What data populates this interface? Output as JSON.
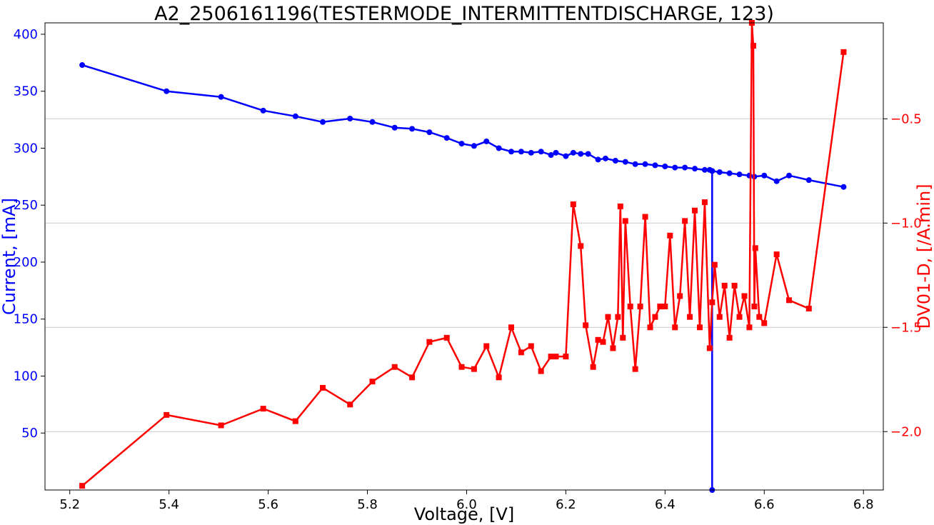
{
  "chart_data": {
    "type": "line",
    "title": "A2_2506161196(TESTERMODE_INTERMITTENTDISCHARGE, 123)",
    "xlabel": "Voltage, [V]",
    "ylabel_left": "Current, [mA]",
    "ylabel_right": "DV01-D, [/A.min]",
    "xlim": [
      5.15,
      6.84
    ],
    "ylim_left": [
      0,
      410
    ],
    "ylim_right": [
      -2.28,
      -0.04
    ],
    "xticks": [
      5.2,
      5.4,
      5.6,
      5.8,
      6.0,
      6.2,
      6.4,
      6.6,
      6.8
    ],
    "xtick_labels": [
      "5.2",
      "5.4",
      "5.6",
      "5.8",
      "6.0",
      "6.2",
      "6.4",
      "6.6",
      "6.8"
    ],
    "yticks_left": [
      50,
      100,
      150,
      200,
      250,
      300,
      350,
      400
    ],
    "ytick_labels_left": [
      "50",
      "100",
      "150",
      "200",
      "250",
      "300",
      "350",
      "400"
    ],
    "yticks_right": [
      -2.0,
      -1.5,
      -1.0,
      -0.5
    ],
    "ytick_labels_right": [
      "−2.0",
      "−1.5",
      "−1.0",
      "−0.5"
    ],
    "grid": "horizontal lines at right-axis ticks",
    "colors": {
      "current": "#0000ff",
      "dv": "#ff0000",
      "grid": "#cccccc"
    },
    "series": [
      {
        "axis": "left",
        "marker": "circle",
        "x": [
          5.225,
          5.395,
          5.505,
          5.59,
          5.655,
          5.71,
          5.765,
          5.81,
          5.855,
          5.89,
          5.925,
          5.96,
          5.99,
          6.015,
          6.04,
          6.065,
          6.09,
          6.11,
          6.13,
          6.15,
          6.17,
          6.18,
          6.2,
          6.215,
          6.23,
          6.245,
          6.265,
          6.28,
          6.3,
          6.32,
          6.34,
          6.36,
          6.38,
          6.4,
          6.42,
          6.44,
          6.46,
          6.48,
          6.49,
          6.495,
          6.495,
          6.495,
          6.51,
          6.53,
          6.55,
          6.57,
          6.58,
          6.6,
          6.625,
          6.65,
          6.69,
          6.76
        ],
        "values": [
          373,
          350,
          345,
          333,
          328,
          323,
          326,
          323,
          318,
          317,
          314,
          309,
          304,
          302,
          306,
          300,
          297,
          297,
          296,
          297,
          294,
          296,
          293,
          296,
          295,
          295,
          290,
          291,
          289,
          288,
          286,
          286,
          285,
          284,
          283,
          283,
          282,
          281,
          281,
          280,
          0,
          280,
          279,
          278,
          277,
          276,
          275,
          276,
          271,
          276,
          272,
          266
        ]
      },
      {
        "axis": "right",
        "marker": "square",
        "x": [
          5.225,
          5.395,
          5.505,
          5.59,
          5.655,
          5.71,
          5.765,
          5.81,
          5.855,
          5.89,
          5.925,
          5.96,
          5.99,
          6.015,
          6.04,
          6.065,
          6.09,
          6.11,
          6.13,
          6.15,
          6.17,
          6.18,
          6.2,
          6.215,
          6.23,
          6.24,
          6.255,
          6.265,
          6.275,
          6.285,
          6.295,
          6.305,
          6.31,
          6.315,
          6.32,
          6.33,
          6.34,
          6.35,
          6.36,
          6.37,
          6.38,
          6.39,
          6.4,
          6.41,
          6.42,
          6.43,
          6.44,
          6.45,
          6.46,
          6.47,
          6.48,
          6.49,
          6.495,
          6.5,
          6.51,
          6.52,
          6.53,
          6.54,
          6.55,
          6.56,
          6.57,
          6.575,
          6.578,
          6.58,
          6.582,
          6.59,
          6.6,
          6.625,
          6.65,
          6.69,
          6.76
        ],
        "values": [
          -2.26,
          -1.92,
          -1.97,
          -1.89,
          -1.95,
          -1.79,
          -1.87,
          -1.76,
          -1.69,
          -1.74,
          -1.57,
          -1.55,
          -1.69,
          -1.7,
          -1.59,
          -1.74,
          -1.5,
          -1.62,
          -1.59,
          -1.71,
          -1.64,
          -1.64,
          -1.64,
          -0.91,
          -1.11,
          -1.49,
          -1.69,
          -1.56,
          -1.57,
          -1.45,
          -1.6,
          -1.45,
          -0.92,
          -1.55,
          -0.99,
          -1.4,
          -1.7,
          -1.4,
          -0.97,
          -1.5,
          -1.45,
          -1.4,
          -1.4,
          -1.06,
          -1.5,
          -1.35,
          -0.99,
          -1.45,
          -0.94,
          -1.5,
          -0.9,
          -1.6,
          -1.38,
          -1.2,
          -1.45,
          -1.3,
          -1.55,
          -1.3,
          -1.45,
          -1.35,
          -1.5,
          -0.04,
          -0.15,
          -1.4,
          -1.12,
          -1.45,
          -1.48,
          -1.15,
          -1.37,
          -1.41,
          -0.18
        ]
      }
    ]
  }
}
